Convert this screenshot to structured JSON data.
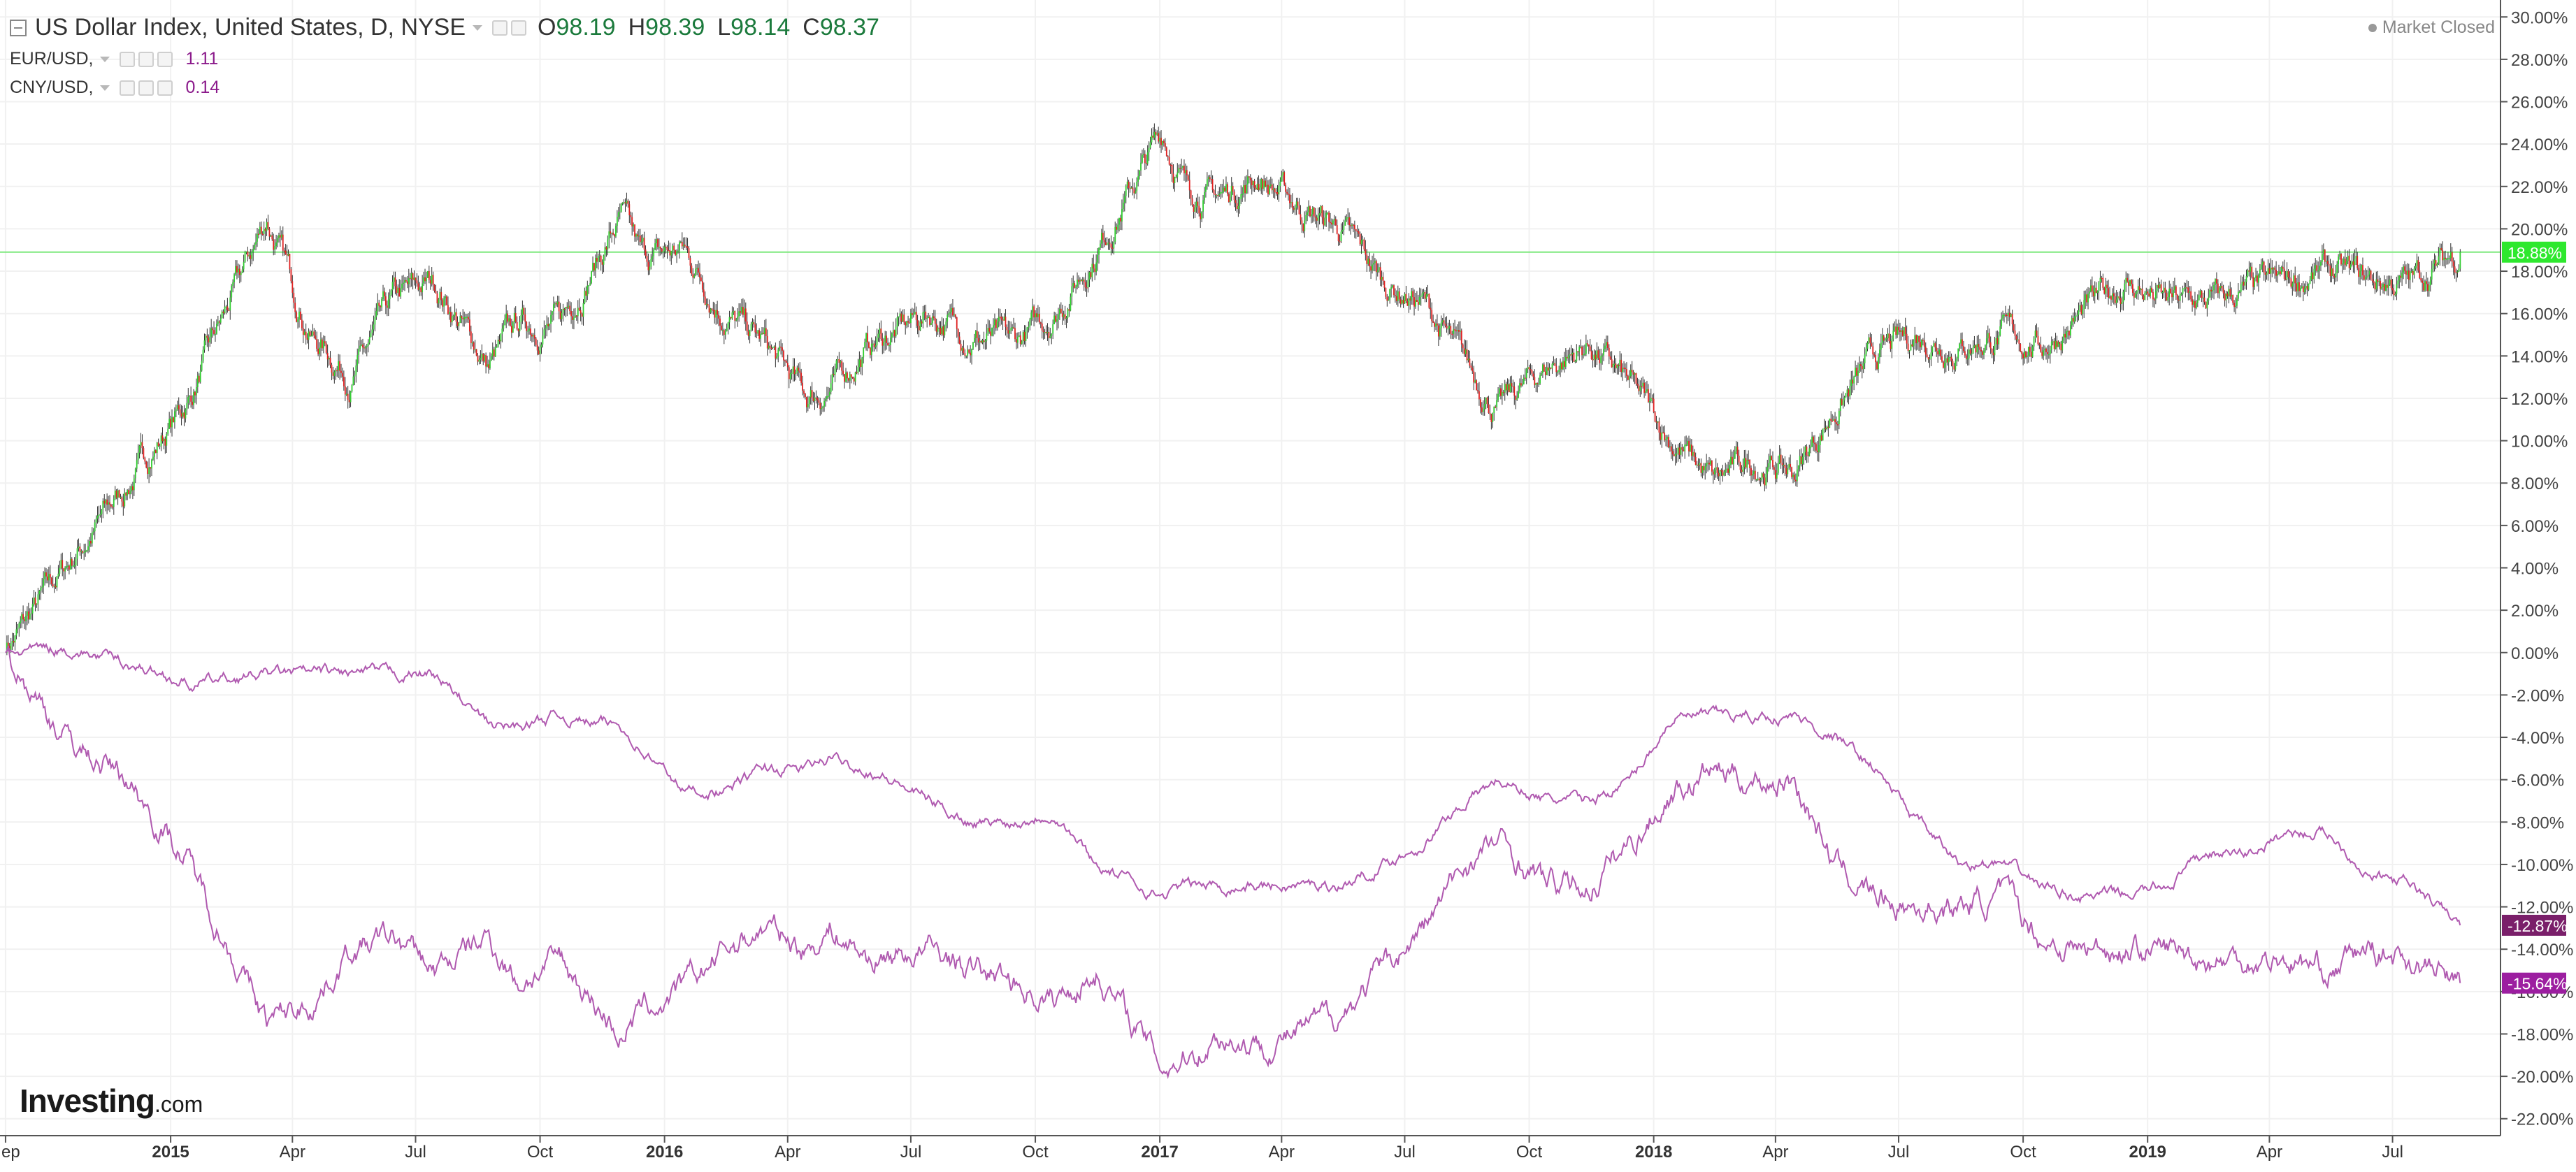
{
  "header": {
    "title": "US Dollar Index, United States, D, NYSE",
    "ohlc": [
      {
        "label": "O",
        "value": "98.19"
      },
      {
        "label": "H",
        "value": "98.39"
      },
      {
        "label": "L",
        "value": "98.14"
      },
      {
        "label": "C",
        "value": "98.37"
      }
    ],
    "market_status": "Market Closed",
    "comparisons": [
      {
        "name": "EUR/USD,",
        "value": "1.11",
        "color": "#8b1a8b"
      },
      {
        "name": "CNY/USD,",
        "value": "0.14",
        "color": "#8b1a8b"
      }
    ]
  },
  "branding": {
    "logo_main": "Investing",
    "logo_suffix": ".com"
  },
  "colors": {
    "up_candle": "#2ecc2e",
    "down_candle": "#e02020",
    "compare_line": "#b05ab0",
    "last_price_badge": "#2ee82e",
    "eur_badge": "#7a1f6a",
    "cny_badge": "#9c1ea0"
  },
  "chart_data": {
    "type": "line",
    "title": "US Dollar Index, United States, D, NYSE",
    "x_axis_labels": [
      "Sep",
      "2015",
      "Apr",
      "Jul",
      "Oct",
      "2016",
      "Apr",
      "Jul",
      "Oct",
      "2017",
      "Apr",
      "Jul",
      "Oct",
      "2018",
      "Apr",
      "Jul",
      "Oct",
      "2019",
      "Apr",
      "Jul"
    ],
    "y_axis_labels": [
      "30.00%",
      "28.00%",
      "26.00%",
      "24.00%",
      "22.00%",
      "20.00%",
      "18.00%",
      "16.00%",
      "14.00%",
      "12.00%",
      "10.00%",
      "8.00%",
      "6.00%",
      "4.00%",
      "2.00%",
      "0.00%",
      "-2.00%",
      "-4.00%",
      "-6.00%",
      "-8.00%",
      "-10.00%",
      "-12.00%",
      "-14.00%",
      "-16.00%",
      "-18.00%",
      "-20.00%",
      "-22.00%"
    ],
    "ylim": [
      -22.8,
      30.8
    ],
    "x": [
      "2014-09-01",
      "2014-10-15",
      "2014-12-01",
      "2015-01-15",
      "2015-03-13",
      "2015-04-15",
      "2015-05-15",
      "2015-06-15",
      "2015-07-15",
      "2015-08-24",
      "2015-09-15",
      "2015-10-15",
      "2015-11-30",
      "2015-12-15",
      "2016-01-15",
      "2016-02-15",
      "2016-03-15",
      "2016-04-15",
      "2016-05-03",
      "2016-06-01",
      "2016-07-15",
      "2016-08-15",
      "2016-09-15",
      "2016-10-15",
      "2016-11-15",
      "2017-01-03",
      "2017-01-20",
      "2017-02-15",
      "2017-03-15",
      "2017-04-15",
      "2017-05-15",
      "2017-06-15",
      "2017-07-15",
      "2017-08-15",
      "2017-09-08",
      "2017-10-15",
      "2017-11-15",
      "2017-12-15",
      "2018-01-15",
      "2018-02-15",
      "2018-03-15",
      "2018-04-15",
      "2018-05-15",
      "2018-06-15",
      "2018-07-15",
      "2018-08-15",
      "2018-09-15",
      "2018-10-15",
      "2018-11-15",
      "2018-12-15",
      "2019-01-15",
      "2019-02-15",
      "2019-03-15",
      "2019-04-15",
      "2019-05-15",
      "2019-06-15",
      "2019-07-15",
      "2019-08-20"
    ],
    "series": [
      {
        "style": "candles",
        "last_value_label": "18.88%",
        "values": [
          0.0,
          4.0,
          8.0,
          12.0,
          20.5,
          15.0,
          13.0,
          16.5,
          17.5,
          13.5,
          15.5,
          15.5,
          20.5,
          18.5,
          19.0,
          16.0,
          14.5,
          12.0,
          12.5,
          14.5,
          16.0,
          15.0,
          14.5,
          16.0,
          19.0,
          24.5,
          22.0,
          21.5,
          22.5,
          21.0,
          20.0,
          17.5,
          16.5,
          13.5,
          11.5,
          13.5,
          14.5,
          12.5,
          10.0,
          8.0,
          9.0,
          8.5,
          11.5,
          14.0,
          15.0,
          14.5,
          15.0,
          14.5,
          16.0,
          17.5,
          16.5,
          16.5,
          17.0,
          17.5,
          18.0,
          17.5,
          17.5,
          18.9
        ]
      },
      {
        "name": "EUR/USD",
        "last_value_label": "-15.64%",
        "values": [
          0.0,
          -4.0,
          -6.0,
          -10.0,
          -17.5,
          -16.5,
          -14.0,
          -13.5,
          -15.0,
          -13.5,
          -15.5,
          -14.5,
          -18.0,
          -17.0,
          -16.0,
          -14.0,
          -13.0,
          -14.0,
          -13.0,
          -14.5,
          -14.0,
          -15.0,
          -15.5,
          -16.5,
          -15.0,
          -19.5,
          -19.0,
          -18.0,
          -18.5,
          -18.0,
          -17.0,
          -15.0,
          -13.0,
          -10.0,
          -9.0,
          -11.0,
          -11.0,
          -9.0,
          -6.5,
          -5.5,
          -6.0,
          -6.0,
          -10.0,
          -11.5,
          -12.0,
          -12.0,
          -11.5,
          -13.5,
          -14.0,
          -14.0,
          -14.0,
          -14.5,
          -14.5,
          -14.5,
          -15.0,
          -14.0,
          -14.5,
          -15.6
        ]
      },
      {
        "name": "CNY/USD",
        "last_value_label": "-12.87%",
        "values": [
          0.0,
          0.2,
          -0.5,
          -1.5,
          -1.0,
          -1.0,
          -1.0,
          -1.0,
          -1.0,
          -3.5,
          -3.5,
          -3.0,
          -3.5,
          -4.5,
          -6.5,
          -6.5,
          -5.5,
          -5.5,
          -5.0,
          -5.5,
          -7.0,
          -8.0,
          -8.0,
          -7.5,
          -10.0,
          -11.5,
          -11.0,
          -11.0,
          -11.0,
          -11.0,
          -11.0,
          -10.0,
          -9.0,
          -7.0,
          -6.0,
          -7.0,
          -7.0,
          -6.0,
          -3.0,
          -3.0,
          -3.0,
          -3.0,
          -4.0,
          -5.5,
          -8.0,
          -10.0,
          -10.0,
          -11.0,
          -11.5,
          -11.5,
          -11.0,
          -9.5,
          -9.5,
          -8.5,
          -8.5,
          -10.5,
          -11.0,
          -12.87
        ]
      }
    ]
  }
}
